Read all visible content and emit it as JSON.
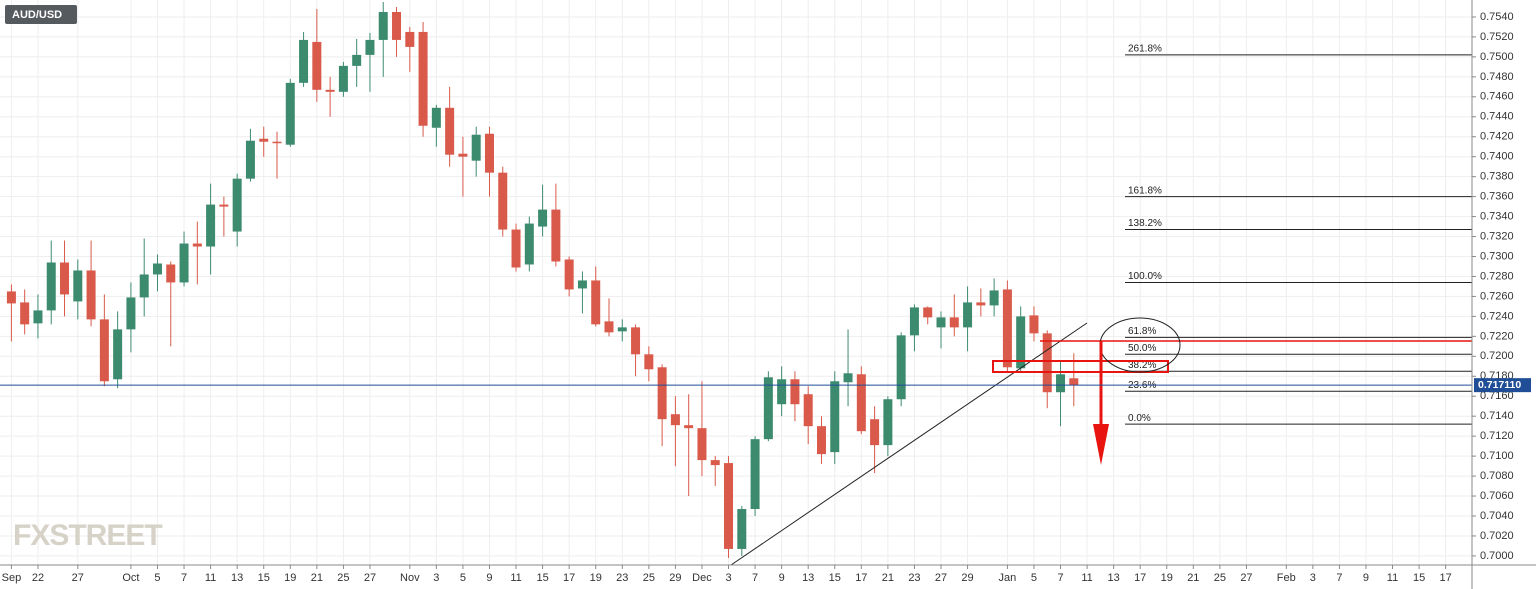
{
  "chart_data": {
    "type": "candlestick",
    "title": "AUD/USD",
    "watermark": "FXSTREET",
    "categories": [
      "Sep",
      null,
      "22",
      null,
      null,
      "27",
      null,
      null,
      null,
      "Oct",
      null,
      "5",
      null,
      "7",
      null,
      "11",
      null,
      "13",
      null,
      "15",
      null,
      "19",
      null,
      "21",
      null,
      "25",
      null,
      "27",
      null,
      null,
      "Nov",
      null,
      "3",
      null,
      "5",
      null,
      "9",
      null,
      "11",
      null,
      "15",
      null,
      "17",
      null,
      "19",
      null,
      "23",
      null,
      "25",
      null,
      "29",
      null,
      "Dec",
      null,
      "3",
      null,
      "7",
      null,
      "9",
      null,
      "13",
      null,
      "15",
      null,
      "17",
      null,
      "21",
      null,
      "23",
      null,
      "27",
      null,
      "29",
      null,
      null,
      "Jan",
      null,
      "5",
      null,
      "7",
      null,
      "11",
      null,
      "13",
      null,
      "17",
      null,
      "19",
      null,
      "21",
      null,
      "25",
      null,
      "27",
      null,
      null,
      "Feb",
      null,
      "3",
      null,
      "7",
      null,
      "9",
      null,
      "11",
      null,
      "15",
      null,
      "17"
    ],
    "open": [
      0.7265,
      0.7254,
      0.7233,
      0.7246,
      0.7294,
      0.7255,
      0.7286,
      0.7237,
      0.7177,
      0.7227,
      0.7259,
      0.7282,
      0.7292,
      0.7274,
      0.7313,
      0.731,
      0.7352,
      0.7325,
      0.7378,
      0.7418,
      0.7415,
      0.7412,
      0.7474,
      0.7515,
      0.7467,
      0.7465,
      0.7491,
      0.7502,
      0.7517,
      0.7545,
      0.7525,
      0.7525,
      0.7429,
      0.7449,
      0.7403,
      0.7396,
      0.7423,
      0.7384,
      0.7327,
      0.7292,
      0.733,
      0.7347,
      0.7297,
      0.7268,
      0.7276,
      0.7235,
      0.7225,
      0.7229,
      0.7202,
      0.7189,
      0.7142,
      0.7131,
      0.7128,
      0.7096,
      0.7093,
      0.7007,
      0.7047,
      0.7117,
      0.7152,
      0.7177,
      0.7162,
      0.713,
      0.7104,
      0.7174,
      0.7182,
      0.7137,
      0.7111,
      0.7157,
      0.7221,
      0.7249,
      0.7229,
      0.7239,
      0.7229,
      0.7254,
      0.7251,
      0.7267,
      0.7188,
      0.7241,
      0.7223,
      0.7164,
      0.7178,
      null,
      null,
      null,
      null,
      null,
      null,
      null,
      null,
      null,
      null,
      null,
      null,
      null,
      null,
      null,
      null,
      null,
      null,
      null,
      null,
      null,
      null,
      null,
      null,
      null,
      null,
      null,
      null
    ],
    "high": [
      0.7272,
      0.7267,
      0.7262,
      0.7316,
      0.7316,
      0.7297,
      0.7316,
      0.7262,
      0.7245,
      0.7274,
      0.7318,
      0.7302,
      0.7295,
      0.7325,
      0.7335,
      0.7373,
      0.736,
      0.7383,
      0.7428,
      0.743,
      0.7425,
      0.7478,
      0.7525,
      0.7548,
      0.748,
      0.7495,
      0.7518,
      0.7524,
      0.7555,
      0.755,
      0.753,
      0.7535,
      0.7452,
      0.747,
      0.742,
      0.743,
      0.743,
      0.739,
      0.7333,
      0.734,
      0.7372,
      0.7373,
      0.73,
      0.7285,
      0.729,
      0.7258,
      0.7237,
      0.7232,
      0.721,
      0.7192,
      0.716,
      0.7162,
      0.7175,
      0.71,
      0.71,
      0.705,
      0.712,
      0.7185,
      0.719,
      0.7185,
      0.717,
      0.714,
      0.7185,
      0.7227,
      0.719,
      0.715,
      0.716,
      0.7224,
      0.7252,
      0.725,
      0.7245,
      0.7262,
      0.727,
      0.7268,
      0.7278,
      0.7276,
      0.725,
      0.725,
      0.7226,
      0.7195,
      0.7203,
      null,
      null,
      null,
      null,
      null,
      null,
      null,
      null,
      null,
      null,
      null,
      null,
      null,
      null,
      null,
      null,
      null,
      null,
      null,
      null,
      null,
      null,
      null,
      null,
      null,
      null,
      null,
      null
    ],
    "low": [
      0.7215,
      0.7222,
      0.7218,
      0.7232,
      0.724,
      0.7237,
      0.723,
      0.717,
      0.7168,
      0.7204,
      0.724,
      0.7265,
      0.721,
      0.727,
      0.7272,
      0.7282,
      0.732,
      0.731,
      0.7375,
      0.74,
      0.7378,
      0.741,
      0.747,
      0.7455,
      0.744,
      0.746,
      0.747,
      0.7465,
      0.748,
      0.75,
      0.7485,
      0.742,
      0.741,
      0.739,
      0.736,
      0.738,
      0.736,
      0.732,
      0.7285,
      0.7285,
      0.732,
      0.729,
      0.726,
      0.7243,
      0.723,
      0.722,
      0.7215,
      0.718,
      0.7175,
      0.711,
      0.709,
      0.706,
      0.708,
      0.707,
      0.6998,
      0.7,
      0.704,
      0.7115,
      0.714,
      0.7135,
      0.7112,
      0.7092,
      0.7092,
      0.715,
      0.7122,
      0.7083,
      0.71,
      0.715,
      0.7205,
      0.7232,
      0.7208,
      0.722,
      0.7205,
      0.724,
      0.724,
      0.7185,
      0.7185,
      0.7215,
      0.7148,
      0.713,
      0.715,
      null,
      null,
      null,
      null,
      null,
      null,
      null,
      null,
      null,
      null,
      null,
      null,
      null,
      null,
      null,
      null,
      null,
      null,
      null,
      null,
      null,
      null,
      null,
      null,
      null,
      null,
      null,
      null
    ],
    "close": [
      0.7253,
      0.7232,
      0.7246,
      0.7294,
      0.7262,
      0.7286,
      0.7237,
      0.7175,
      0.7227,
      0.7259,
      0.7282,
      0.7293,
      0.7274,
      0.7313,
      0.731,
      0.7352,
      0.735,
      0.7378,
      0.7416,
      0.7415,
      0.7414,
      0.7474,
      0.7517,
      0.7467,
      0.7465,
      0.7491,
      0.7502,
      0.7517,
      0.7545,
      0.7517,
      0.751,
      0.7431,
      0.7449,
      0.7402,
      0.74,
      0.7422,
      0.7384,
      0.7327,
      0.7289,
      0.7333,
      0.7347,
      0.7295,
      0.7267,
      0.7276,
      0.7232,
      0.7224,
      0.7229,
      0.7202,
      0.7187,
      0.7137,
      0.7131,
      0.7128,
      0.7096,
      0.7091,
      0.7007,
      0.7047,
      0.7117,
      0.7179,
      0.7177,
      0.7152,
      0.713,
      0.7102,
      0.7175,
      0.7183,
      0.7125,
      0.7111,
      0.7157,
      0.7221,
      0.7249,
      0.7239,
      0.7239,
      0.7229,
      0.7254,
      0.7251,
      0.7266,
      0.7189,
      0.724,
      0.7223,
      0.7164,
      0.7182,
      0.7171,
      null,
      null,
      null,
      null,
      null,
      null,
      null,
      null,
      null,
      null,
      null,
      null,
      null,
      null,
      null,
      null,
      null,
      null,
      null,
      null,
      null,
      null,
      null,
      null,
      null,
      null,
      null,
      null
    ],
    "up_color": "#3d8b6f",
    "down_color": "#d9594a",
    "ylim": [
      0.69909,
      0.7557
    ],
    "yticks": [
      {
        "value": 0.7,
        "label": "0.7000"
      },
      {
        "value": 0.702,
        "label": "0.7020"
      },
      {
        "value": 0.704,
        "label": "0.7040"
      },
      {
        "value": 0.706,
        "label": "0.7060"
      },
      {
        "value": 0.708,
        "label": "0.7080"
      },
      {
        "value": 0.71,
        "label": "0.7100"
      },
      {
        "value": 0.712,
        "label": "0.7120"
      },
      {
        "value": 0.714,
        "label": "0.7140"
      },
      {
        "value": 0.716,
        "label": "0.7160"
      },
      {
        "value": 0.718,
        "label": "0.7180"
      },
      {
        "value": 0.72,
        "label": "0.7200"
      },
      {
        "value": 0.722,
        "label": "0.7220"
      },
      {
        "value": 0.724,
        "label": "0.7240"
      },
      {
        "value": 0.726,
        "label": "0.7260"
      },
      {
        "value": 0.728,
        "label": "0.7280"
      },
      {
        "value": 0.73,
        "label": "0.7300"
      },
      {
        "value": 0.732,
        "label": "0.7320"
      },
      {
        "value": 0.734,
        "label": "0.7340"
      },
      {
        "value": 0.736,
        "label": "0.7360"
      },
      {
        "value": 0.738,
        "label": "0.7380"
      },
      {
        "value": 0.74,
        "label": "0.7400"
      },
      {
        "value": 0.742,
        "label": "0.7420"
      },
      {
        "value": 0.744,
        "label": "0.7440"
      },
      {
        "value": 0.746,
        "label": "0.7460"
      },
      {
        "value": 0.748,
        "label": "0.7480"
      },
      {
        "value": 0.75,
        "label": "0.7500"
      },
      {
        "value": 0.752,
        "label": "0.7520"
      },
      {
        "value": 0.754,
        "label": "0.7540"
      }
    ],
    "grid": true,
    "last_price": {
      "value": 0.71711,
      "label": "0.717110"
    },
    "last_price_color": "#1f4e96",
    "fib_levels": [
      {
        "label": "261.8%",
        "value": 0.7502
      },
      {
        "label": "161.8%",
        "value": 0.736
      },
      {
        "label": "138.2%",
        "value": 0.7327
      },
      {
        "label": "100.0%",
        "value": 0.7274
      },
      {
        "label": "61.8%",
        "value": 0.7219
      },
      {
        "label": "50.0%",
        "value": 0.7202
      },
      {
        "label": "38.2%",
        "value": 0.7185
      },
      {
        "label": "23.6%",
        "value": 0.7165
      },
      {
        "label": "0.0%",
        "value": 0.7132
      }
    ]
  }
}
